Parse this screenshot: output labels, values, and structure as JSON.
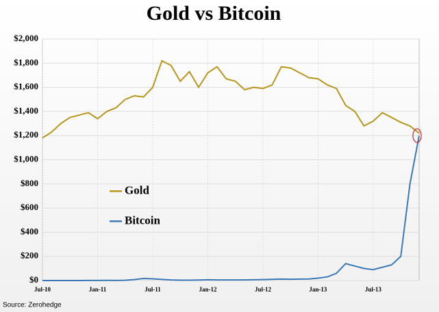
{
  "chart_data": {
    "type": "line",
    "title": "Gold vs Bitcoin",
    "x": [
      "2010-07",
      "2010-08",
      "2010-09",
      "2010-10",
      "2010-11",
      "2010-12",
      "2011-01",
      "2011-02",
      "2011-03",
      "2011-04",
      "2011-05",
      "2011-06",
      "2011-07",
      "2011-08",
      "2011-09",
      "2011-10",
      "2011-11",
      "2011-12",
      "2012-01",
      "2012-02",
      "2012-03",
      "2012-04",
      "2012-05",
      "2012-06",
      "2012-07",
      "2012-08",
      "2012-09",
      "2012-10",
      "2012-11",
      "2012-12",
      "2013-01",
      "2013-02",
      "2013-03",
      "2013-04",
      "2013-05",
      "2013-06",
      "2013-07",
      "2013-08",
      "2013-09",
      "2013-10",
      "2013-11",
      "2013-12"
    ],
    "series": [
      {
        "name": "Gold",
        "color": "#b8961e",
        "values": [
          1180,
          1230,
          1300,
          1350,
          1370,
          1390,
          1340,
          1400,
          1430,
          1500,
          1530,
          1520,
          1600,
          1820,
          1780,
          1650,
          1730,
          1600,
          1720,
          1770,
          1670,
          1650,
          1580,
          1600,
          1590,
          1620,
          1770,
          1760,
          1720,
          1680,
          1670,
          1620,
          1590,
          1450,
          1400,
          1280,
          1320,
          1390,
          1350,
          1310,
          1280,
          1220
        ]
      },
      {
        "name": "Bitcoin",
        "color": "#3a78b5",
        "values": [
          0.1,
          0.1,
          0.1,
          0.2,
          0.2,
          0.3,
          0.3,
          0.9,
          0.8,
          2,
          8,
          17,
          14,
          9,
          5,
          3,
          3,
          4,
          6,
          5,
          5,
          5,
          5,
          6,
          8,
          10,
          12,
          11,
          12,
          13,
          20,
          30,
          60,
          140,
          120,
          100,
          90,
          110,
          130,
          200,
          800,
          1200
        ]
      }
    ],
    "xlim": [
      "2010-07",
      "2013-12"
    ],
    "xticks": [
      {
        "value": "2010-07",
        "label": "Jul-10"
      },
      {
        "value": "2011-01",
        "label": "Jan-11"
      },
      {
        "value": "2011-07",
        "label": "Jul-11"
      },
      {
        "value": "2012-01",
        "label": "Jan-12"
      },
      {
        "value": "2012-07",
        "label": "Jul-12"
      },
      {
        "value": "2013-01",
        "label": "Jan-13"
      },
      {
        "value": "2013-07",
        "label": "Jul-13"
      }
    ],
    "ylim": [
      0,
      2000
    ],
    "yticks": [
      {
        "value": 0,
        "label": "$0"
      },
      {
        "value": 200,
        "label": "$200"
      },
      {
        "value": 400,
        "label": "$400"
      },
      {
        "value": 600,
        "label": "$600"
      },
      {
        "value": 800,
        "label": "$800"
      },
      {
        "value": 1000,
        "label": "$1,000"
      },
      {
        "value": 1200,
        "label": "$1,200"
      },
      {
        "value": 1400,
        "label": "$1,400"
      },
      {
        "value": 1600,
        "label": "$1,600"
      },
      {
        "value": 1800,
        "label": "$1,800"
      },
      {
        "value": 2000,
        "label": "$2,000"
      }
    ],
    "grid": true,
    "legend": "center-left",
    "source": "Source: Zerohedge"
  }
}
